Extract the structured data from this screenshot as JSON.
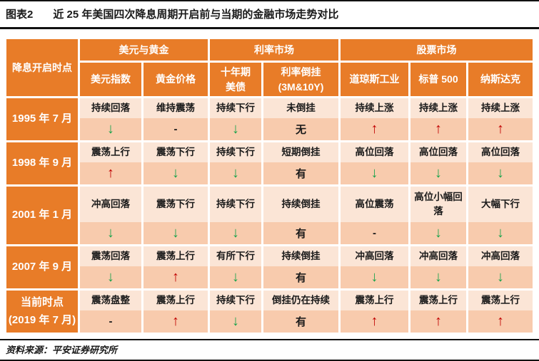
{
  "header": {
    "tag": "图表2",
    "title": "近 25 年美国四次降息周期开启前与当期的金融市场走势对比"
  },
  "footer": {
    "source": "资料来源：平安证券研究所"
  },
  "colors": {
    "orange": "#E87C28",
    "row_light": "#FBE5D6",
    "row_dark": "#F8CBAD",
    "up_red": "#C00000",
    "down_green": "#17A24A",
    "text_black": "#1A1A1A"
  },
  "table": {
    "corner_label": "降息开启时点",
    "groups": [
      {
        "label": "美元与黄金",
        "span": 2
      },
      {
        "label": "利率市场",
        "span": 2
      },
      {
        "label": "股票市场",
        "span": 3
      }
    ],
    "columns": [
      {
        "id": "usd-index",
        "lines": [
          "美元指数"
        ]
      },
      {
        "id": "gold-price",
        "lines": [
          "黄金价格"
        ]
      },
      {
        "id": "us-10y-bond",
        "lines": [
          "十年期",
          "美债"
        ]
      },
      {
        "id": "yield-inversion",
        "lines": [
          "利率倒挂",
          "(3M&10Y)"
        ]
      },
      {
        "id": "dow-jones",
        "lines": [
          "道琼斯工业"
        ]
      },
      {
        "id": "sp500",
        "lines": [
          "标普 500"
        ]
      },
      {
        "id": "nasdaq",
        "lines": [
          "纳斯达克"
        ]
      }
    ],
    "rows": [
      {
        "label_lines": [
          "1995 年 7 月"
        ],
        "cells": [
          {
            "desc": "持续回落",
            "symbol": "↓",
            "dir": "down"
          },
          {
            "desc": "维持震荡",
            "symbol": "-",
            "dir": "flat"
          },
          {
            "desc": "持续下行",
            "symbol": "↓",
            "dir": "down"
          },
          {
            "desc": "未倒挂",
            "symbol": "无",
            "dir": "flat"
          },
          {
            "desc": "持续上涨",
            "symbol": "↑",
            "dir": "up"
          },
          {
            "desc": "持续上涨",
            "symbol": "↑",
            "dir": "up"
          },
          {
            "desc": "持续上涨",
            "symbol": "↑",
            "dir": "up"
          }
        ]
      },
      {
        "label_lines": [
          "1998 年 9 月"
        ],
        "cells": [
          {
            "desc": "震荡上行",
            "symbol": "↑",
            "dir": "up"
          },
          {
            "desc": "震荡下行",
            "symbol": "↓",
            "dir": "down"
          },
          {
            "desc": "持续下行",
            "symbol": "↓",
            "dir": "down"
          },
          {
            "desc": "短期倒挂",
            "symbol": "有",
            "dir": "flat"
          },
          {
            "desc": "高位回落",
            "symbol": "↓",
            "dir": "down"
          },
          {
            "desc": "高位回落",
            "symbol": "↓",
            "dir": "down"
          },
          {
            "desc": "高位回落",
            "symbol": "↓",
            "dir": "down"
          }
        ]
      },
      {
        "label_lines": [
          "2001 年 1 月"
        ],
        "cells": [
          {
            "desc": "冲高回落",
            "symbol": "↓",
            "dir": "down"
          },
          {
            "desc": "震荡下行",
            "symbol": "↓",
            "dir": "down"
          },
          {
            "desc": "持续下行",
            "symbol": "↓",
            "dir": "down"
          },
          {
            "desc": "持续倒挂",
            "symbol": "有",
            "dir": "flat"
          },
          {
            "desc": "高位震荡",
            "symbol": "-",
            "dir": "flat"
          },
          {
            "desc": "高位小幅回落",
            "symbol": "↓",
            "dir": "down"
          },
          {
            "desc": "大幅下行",
            "symbol": "↓",
            "dir": "down"
          }
        ]
      },
      {
        "label_lines": [
          "2007 年 9 月"
        ],
        "cells": [
          {
            "desc": "震荡回落",
            "symbol": "↓",
            "dir": "down"
          },
          {
            "desc": "震荡上行",
            "symbol": "↑",
            "dir": "up"
          },
          {
            "desc": "有所下行",
            "symbol": "↓",
            "dir": "down"
          },
          {
            "desc": "持续倒挂",
            "symbol": "有",
            "dir": "flat"
          },
          {
            "desc": "冲高回落",
            "symbol": "↓",
            "dir": "down"
          },
          {
            "desc": "冲高回落",
            "symbol": "↓",
            "dir": "down"
          },
          {
            "desc": "冲高回落",
            "symbol": "↓",
            "dir": "down"
          }
        ]
      },
      {
        "label_lines": [
          "当前时点",
          "(2019 年 7 月)"
        ],
        "cells": [
          {
            "desc": "震荡盘整",
            "symbol": "-",
            "dir": "flat"
          },
          {
            "desc": "震荡上行",
            "symbol": "↑",
            "dir": "up"
          },
          {
            "desc": "持续下行",
            "symbol": "↓",
            "dir": "down"
          },
          {
            "desc": "倒挂仍在持续",
            "symbol": "有",
            "dir": "flat"
          },
          {
            "desc": "震荡上行",
            "symbol": "↑",
            "dir": "up"
          },
          {
            "desc": "震荡上行",
            "symbol": "↑",
            "dir": "up"
          },
          {
            "desc": "震荡上行",
            "symbol": "↑",
            "dir": "up"
          }
        ]
      }
    ]
  }
}
